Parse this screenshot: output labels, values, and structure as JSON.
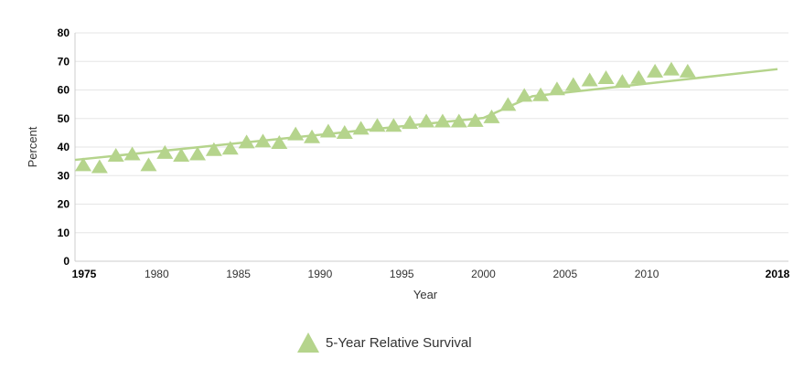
{
  "chart_data": {
    "type": "scatter",
    "xlabel": "Year",
    "ylabel": "Percent",
    "xlim": [
      1975,
      2018
    ],
    "ylim": [
      0,
      80
    ],
    "x_ticks": [
      1975,
      1980,
      1985,
      1990,
      1995,
      2000,
      2005,
      2010,
      2018
    ],
    "y_ticks": [
      0,
      10,
      20,
      30,
      40,
      50,
      60,
      70,
      80
    ],
    "grid": "horizontal",
    "legend_position": "bottom-center",
    "marker_color": "#b5d48c",
    "trend_color": "#b5d48c",
    "series": [
      {
        "name": "5-Year Relative Survival",
        "marker": "triangle",
        "x": [
          1975,
          1976,
          1977,
          1978,
          1979,
          1980,
          1981,
          1982,
          1983,
          1984,
          1985,
          1986,
          1987,
          1988,
          1989,
          1990,
          1991,
          1992,
          1993,
          1994,
          1995,
          1996,
          1997,
          1998,
          1999,
          2000,
          2001,
          2002,
          2003,
          2004,
          2005,
          2006,
          2007,
          2008,
          2009,
          2010,
          2011,
          2012
        ],
        "values": [
          33.5,
          32.8,
          36.8,
          37.3,
          33.5,
          37.8,
          36.8,
          37.3,
          38.8,
          39.3,
          41.5,
          41.8,
          41.3,
          44.3,
          43.3,
          45.3,
          44.8,
          46.3,
          47.3,
          47.3,
          48.3,
          48.8,
          48.8,
          48.8,
          49.0,
          50.3,
          54.6,
          57.8,
          58.0,
          60.1,
          61.6,
          63.2,
          64.0,
          62.7,
          64.1,
          66.3,
          67.0,
          66.3
        ]
      }
    ],
    "trend": {
      "x": [
        1975,
        2000,
        2003,
        2018
      ],
      "values": [
        35.5,
        50.2,
        57.8,
        67.3
      ]
    }
  }
}
